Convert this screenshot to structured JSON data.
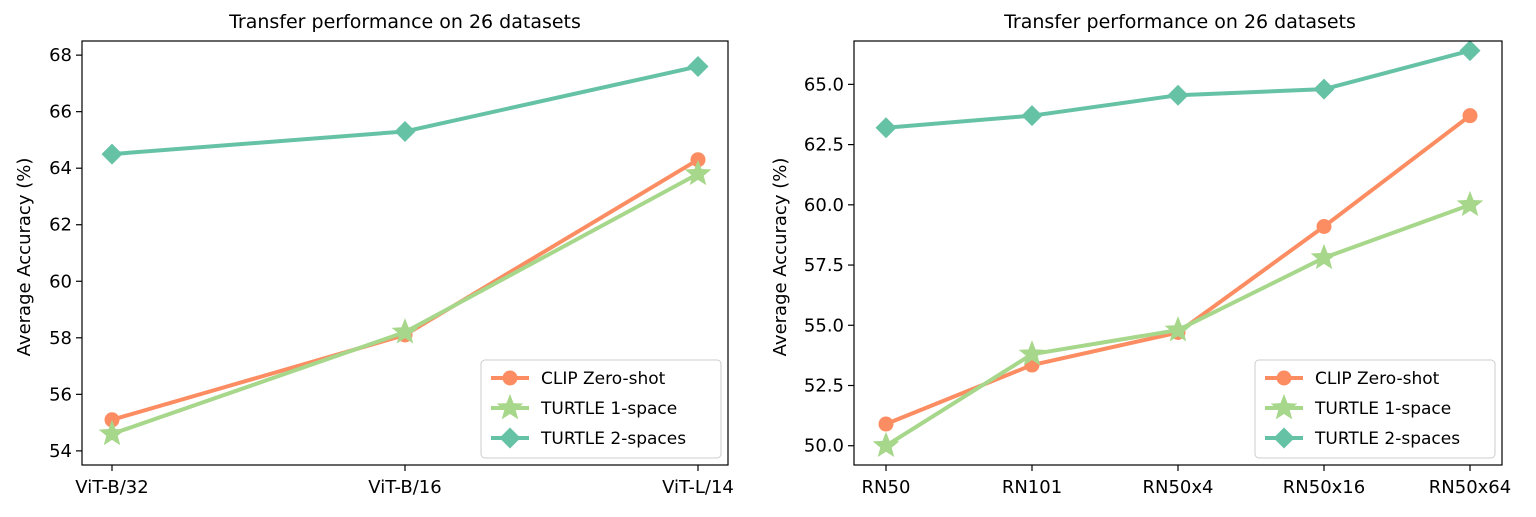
{
  "colors": {
    "clip": "#fc8d62",
    "turtle1": "#a6d78a",
    "turtle2": "#66c2a5"
  },
  "chart_data": [
    {
      "type": "line",
      "title": "Transfer performance on 26 datasets",
      "xlabel": "",
      "ylabel": "Average Accuracy (%)",
      "categories": [
        "ViT-B/32",
        "ViT-B/16",
        "ViT-L/14"
      ],
      "ylim": [
        53.5,
        68.5
      ],
      "yticks": [
        54,
        56,
        58,
        60,
        62,
        64,
        66,
        68
      ],
      "ytick_labels": [
        "54",
        "56",
        "58",
        "60",
        "62",
        "64",
        "66",
        "68"
      ],
      "legend_position": "lower-right",
      "series": [
        {
          "name": "CLIP Zero-shot",
          "marker": "circle",
          "values": [
            55.1,
            58.1,
            64.3
          ]
        },
        {
          "name": "TURTLE 1-space",
          "marker": "star",
          "values": [
            54.6,
            58.2,
            63.8
          ]
        },
        {
          "name": "TURTLE 2-spaces",
          "marker": "diamond",
          "values": [
            64.5,
            65.3,
            67.6
          ]
        }
      ]
    },
    {
      "type": "line",
      "title": "Transfer performance on 26 datasets",
      "xlabel": "",
      "ylabel": "Average Accuracy (%)",
      "categories": [
        "RN50",
        "RN101",
        "RN50x4",
        "RN50x16",
        "RN50x64"
      ],
      "ylim": [
        49.2,
        66.8
      ],
      "yticks": [
        50.0,
        52.5,
        55.0,
        57.5,
        60.0,
        62.5,
        65.0
      ],
      "ytick_labels": [
        "50.0",
        "52.5",
        "55.0",
        "57.5",
        "60.0",
        "62.5",
        "65.0"
      ],
      "legend_position": "lower-right",
      "series": [
        {
          "name": "CLIP Zero-shot",
          "marker": "circle",
          "values": [
            50.9,
            53.35,
            54.7,
            59.1,
            63.7
          ]
        },
        {
          "name": "TURTLE 1-space",
          "marker": "star",
          "values": [
            50.0,
            53.8,
            54.8,
            57.8,
            60.0
          ]
        },
        {
          "name": "TURTLE 2-spaces",
          "marker": "diamond",
          "values": [
            63.2,
            63.7,
            64.55,
            64.8,
            66.4
          ]
        }
      ]
    }
  ]
}
